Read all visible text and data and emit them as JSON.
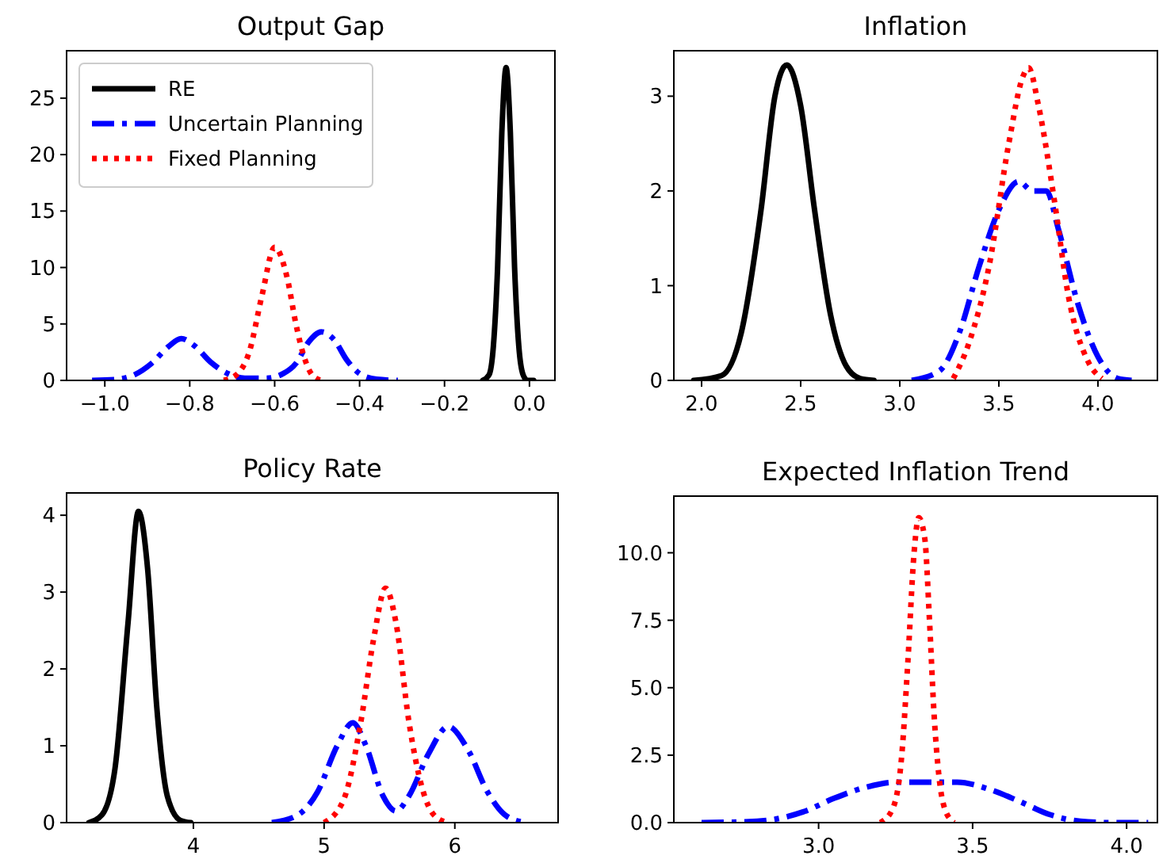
{
  "chart_data": [
    {
      "type": "line",
      "title": "Output Gap",
      "xlim": [
        -1.09,
        0.06
      ],
      "xticks": [
        {
          "value": -1.0,
          "label": "−1.0"
        },
        {
          "value": -0.8,
          "label": "−0.8"
        },
        {
          "value": -0.6,
          "label": "−0.6"
        },
        {
          "value": -0.4,
          "label": "−0.4"
        },
        {
          "value": -0.2,
          "label": "−0.2"
        },
        {
          "value": 0,
          "label": "0.0"
        }
      ],
      "ylim": [
        0,
        29.2
      ],
      "yticks": [
        0,
        5,
        10,
        15,
        20,
        25
      ],
      "grid": false,
      "legend": "top left",
      "series": [
        {
          "name": "RE",
          "color": "#000000",
          "line_style": "solid",
          "x": [
            -0.11,
            -0.095,
            -0.085,
            -0.075,
            -0.065,
            -0.055,
            -0.045,
            -0.035,
            -0.025,
            -0.015,
            -0.005,
            0.01
          ],
          "values": [
            0,
            0.5,
            3,
            10,
            22,
            27.7,
            22,
            10,
            3,
            0.5,
            0,
            0
          ]
        },
        {
          "name": "Uncertain Planning",
          "color": "#0000ff",
          "line_style": "dashdot",
          "x": [
            -1.03,
            -0.97,
            -0.93,
            -0.89,
            -0.85,
            -0.82,
            -0.79,
            -0.75,
            -0.71,
            -0.67,
            -0.62,
            -0.58,
            -0.55,
            -0.52,
            -0.49,
            -0.46,
            -0.43,
            -0.4,
            -0.36,
            -0.31
          ],
          "values": [
            0,
            0.1,
            0.5,
            1.5,
            3.0,
            3.7,
            3.1,
            1.6,
            0.6,
            0.2,
            0.2,
            0.6,
            1.5,
            3.4,
            4.3,
            3.6,
            1.8,
            0.6,
            0.1,
            0
          ]
        },
        {
          "name": "Fixed Planning",
          "color": "#ff0000",
          "line_style": "dotted",
          "x": [
            -0.72,
            -0.69,
            -0.66,
            -0.63,
            -0.6,
            -0.57,
            -0.55,
            -0.53,
            -0.51,
            -0.49
          ],
          "values": [
            0,
            0.5,
            2.5,
            7.5,
            11.8,
            9,
            5,
            2,
            0.4,
            0
          ]
        }
      ]
    },
    {
      "type": "line",
      "title": "Inflation",
      "xlim": [
        1.86,
        4.3
      ],
      "xticks": [
        {
          "value": 2,
          "label": "2.0"
        },
        2.5,
        {
          "value": 3,
          "label": "3.0"
        },
        3.5,
        {
          "value": 4,
          "label": "4.0"
        }
      ],
      "ylim": [
        0,
        3.48
      ],
      "yticks": [
        0,
        1,
        2,
        3
      ],
      "grid": false,
      "series": [
        {
          "color": "#000000",
          "line_style": "solid",
          "x": [
            1.96,
            2.1,
            2.2,
            2.3,
            2.37,
            2.43,
            2.5,
            2.57,
            2.65,
            2.73,
            2.8,
            2.87
          ],
          "values": [
            0,
            0.05,
            0.5,
            1.8,
            3.0,
            3.33,
            2.9,
            1.8,
            0.7,
            0.15,
            0.02,
            0
          ]
        },
        {
          "color": "#0000ff",
          "line_style": "dashdot",
          "x": [
            3.06,
            3.2,
            3.3,
            3.4,
            3.5,
            3.6,
            3.67,
            3.74,
            3.8,
            3.9,
            4.0,
            4.1,
            4.17
          ],
          "values": [
            0,
            0.1,
            0.5,
            1.2,
            1.8,
            2.1,
            2.0,
            2.0,
            1.6,
            0.8,
            0.25,
            0.02,
            0
          ]
        },
        {
          "color": "#ff0000",
          "line_style": "dotted",
          "x": [
            3.27,
            3.35,
            3.45,
            3.55,
            3.62,
            3.65,
            3.7,
            3.78,
            3.85,
            3.95,
            4.02
          ],
          "values": [
            0.02,
            0.4,
            1.2,
            2.5,
            3.2,
            3.3,
            2.9,
            1.9,
            0.9,
            0.2,
            0.02
          ]
        }
      ]
    },
    {
      "type": "line",
      "title": "Policy Rate",
      "xlim": [
        3.03,
        6.79
      ],
      "xticks": [
        4,
        5,
        6
      ],
      "ylim": [
        0,
        4.29
      ],
      "yticks": [
        0,
        1,
        2,
        3,
        4
      ],
      "grid": false,
      "series": [
        {
          "color": "#000000",
          "line_style": "solid",
          "x": [
            3.2,
            3.3,
            3.4,
            3.5,
            3.58,
            3.65,
            3.72,
            3.8,
            3.9,
            3.98
          ],
          "values": [
            0,
            0.1,
            0.7,
            2.6,
            4.05,
            3.3,
            1.5,
            0.35,
            0.03,
            0
          ]
        },
        {
          "color": "#0000ff",
          "line_style": "dashdot",
          "x": [
            4.6,
            4.8,
            4.95,
            5.1,
            5.22,
            5.32,
            5.45,
            5.55,
            5.65,
            5.8,
            5.95,
            6.1,
            6.25,
            6.4,
            6.55
          ],
          "values": [
            0,
            0.1,
            0.4,
            1.0,
            1.3,
            1.0,
            0.35,
            0.15,
            0.35,
            0.9,
            1.25,
            0.95,
            0.4,
            0.08,
            0
          ]
        },
        {
          "color": "#ff0000",
          "line_style": "dotted",
          "x": [
            5.0,
            5.15,
            5.28,
            5.38,
            5.47,
            5.55,
            5.65,
            5.75,
            5.85,
            5.95
          ],
          "values": [
            0,
            0.3,
            1.3,
            2.4,
            3.05,
            2.6,
            1.3,
            0.45,
            0.08,
            0
          ]
        }
      ]
    },
    {
      "type": "line",
      "title": "Expected Inflation Trend",
      "xlim": [
        2.53,
        4.1
      ],
      "xticks": [
        {
          "value": 3,
          "label": "3.0"
        },
        3.5,
        {
          "value": 4,
          "label": "4.0"
        }
      ],
      "ylim": [
        0,
        12.1
      ],
      "yticks": [
        {
          "value": 0,
          "label": "0.0"
        },
        2.5,
        {
          "value": 5,
          "label": "5.0"
        },
        7.5,
        {
          "value": 10,
          "label": "10.0"
        }
      ],
      "grid": false,
      "series": [
        {
          "color": "#0000ff",
          "line_style": "dashdot",
          "x": [
            2.62,
            2.8,
            2.95,
            3.05,
            3.15,
            3.25,
            3.35,
            3.45,
            3.55,
            3.65,
            3.75,
            3.85,
            3.95,
            4.07
          ],
          "values": [
            0,
            0.05,
            0.4,
            0.9,
            1.3,
            1.5,
            1.5,
            1.5,
            1.25,
            0.8,
            0.3,
            0.05,
            0,
            0
          ]
        },
        {
          "color": "#ff0000",
          "line_style": "dotted",
          "x": [
            3.2,
            3.24,
            3.27,
            3.29,
            3.31,
            3.325,
            3.345,
            3.36,
            3.375,
            3.39,
            3.41,
            3.44
          ],
          "values": [
            0,
            0.5,
            2.5,
            6,
            10,
            11.3,
            10.5,
            7.5,
            4,
            1.8,
            0.5,
            0
          ]
        }
      ]
    }
  ]
}
